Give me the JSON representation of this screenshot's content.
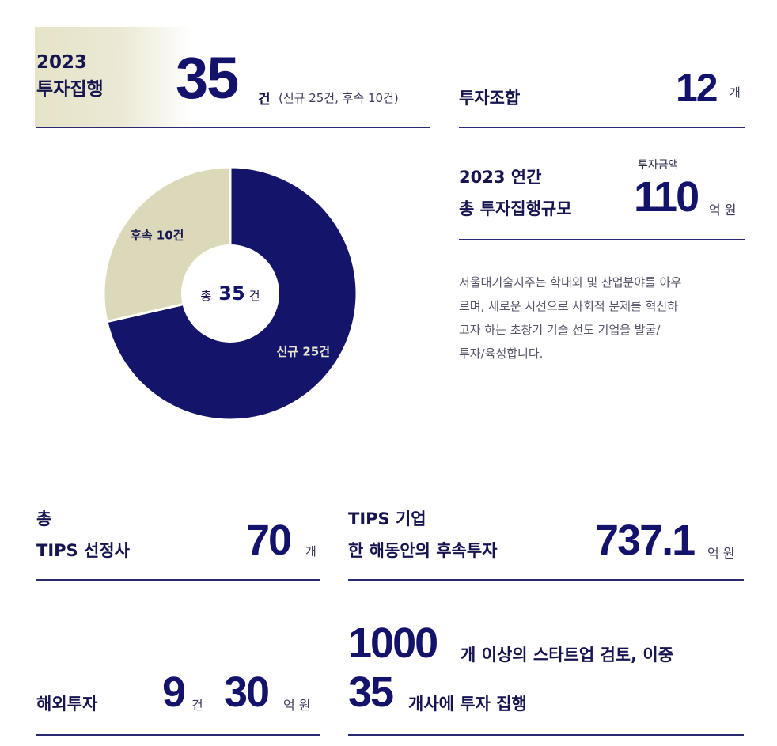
{
  "top": {
    "year": "2023",
    "exec_label": "투자집행",
    "exec_value": "35",
    "exec_unit": "건",
    "exec_detail": "(신규 25건, 후속 10건)"
  },
  "fund": {
    "label": "투자조합",
    "value": "12",
    "unit": "개"
  },
  "annual": {
    "label_line1": "2023 연간",
    "label_line2": "총 투자집행규모",
    "caption": "투자금액",
    "value": "110",
    "unit": "억 원"
  },
  "description": [
    "서울대기술지주는 학내외 및 산업분야를 아우",
    "르며, 새로운 시선으로 사회적 문제를 혁신하",
    "고자 하는 초창기 기술 선도 기업을 발굴/",
    "투자/육성합니다."
  ],
  "chart_data": {
    "type": "pie",
    "center_label_prefix": "총",
    "center_value": "35",
    "center_unit": "건",
    "slices": [
      {
        "name": "신규",
        "value": 25,
        "label": "신규 25건",
        "color": "#15146b"
      },
      {
        "name": "후속",
        "value": 10,
        "label": "후속 10건",
        "color": "#dcd9bb"
      }
    ]
  },
  "tips": {
    "line1": "총",
    "line2": "TIPS 선정사",
    "value": "70",
    "unit": "개"
  },
  "tips_follow": {
    "line1": "TIPS 기업",
    "line2": "한 해동안의 후속투자",
    "value": "737.1",
    "unit": "억 원"
  },
  "overseas": {
    "label": "해외투자",
    "count": "9",
    "count_unit": "건",
    "amount": "30",
    "amount_unit": "억 원"
  },
  "startup": {
    "reviewed": "1000",
    "reviewed_text": "개 이상의 스타트업 검토, 이중",
    "invested": "35",
    "invested_text": "개사에 투자 집행"
  }
}
